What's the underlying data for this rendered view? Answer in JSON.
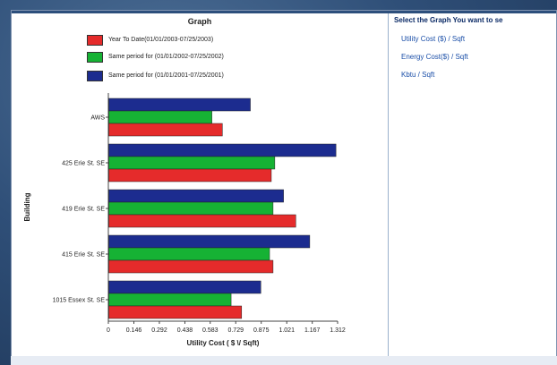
{
  "chart_data": {
    "type": "bar",
    "orientation": "horizontal",
    "title": "Graph",
    "xlabel": "Utility Cost ( $ \\/ Sqft)",
    "ylabel": "Building",
    "xlim": [
      0,
      1.312
    ],
    "xticks": [
      "0",
      "0.146",
      "0.292",
      "0.438",
      "0.583",
      "0.729",
      "0.875",
      "1.021",
      "1.167",
      "1.312"
    ],
    "categories": [
      "AWS",
      "425 Erie St. SE",
      "419 Erie St. SE",
      "415 Erie St. SE",
      "1015 Essex St. SE"
    ],
    "series": [
      {
        "name": "Same period for (01/01/2001-07/25/2001)",
        "color": "#1c2c8f",
        "values": [
          0.81,
          1.3,
          1.0,
          1.15,
          0.87
        ]
      },
      {
        "name": "Same period for (01/01/2002-07/25/2002)",
        "color": "#16b234",
        "values": [
          0.59,
          0.95,
          0.94,
          0.92,
          0.7
        ]
      },
      {
        "name": "Year To Date(01/01/2003-07/25/2003)",
        "color": "#e52b2b",
        "values": [
          0.65,
          0.93,
          1.07,
          0.94,
          0.76
        ]
      }
    ],
    "legend": [
      {
        "label": "Year To Date(01/01/2003-07/25/2003)",
        "color": "#e52b2b"
      },
      {
        "label": "Same period for (01/01/2002-07/25/2002)",
        "color": "#16b234"
      },
      {
        "label": "Same period for (01/01/2001-07/25/2001)",
        "color": "#1c2c8f"
      }
    ],
    "legend_placement": "top",
    "grid": false
  },
  "sidebar": {
    "title": "Select the Graph You want to se",
    "links": [
      {
        "label": "Utility Cost ($) / Sqft"
      },
      {
        "label": "Energy Cost($) / Sqft"
      },
      {
        "label": "Kbtu / Sqft"
      }
    ]
  }
}
